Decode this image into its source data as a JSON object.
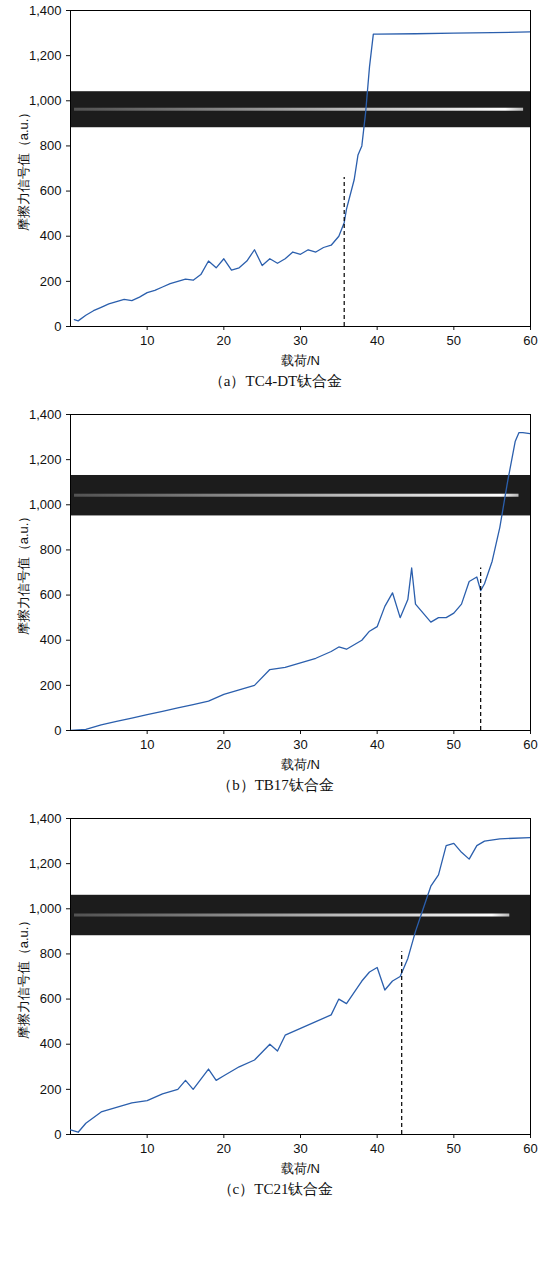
{
  "chart_data": [
    {
      "type": "line",
      "title": "（a）TC4-DT钛合金",
      "xlabel": "载荷/N",
      "ylabel": "摩擦力信号值（a.u.）",
      "xlim": [
        0,
        60
      ],
      "xticks": [
        10,
        20,
        30,
        40,
        50,
        60
      ],
      "ylim": [
        0,
        1400
      ],
      "yticks": [
        0,
        200,
        400,
        600,
        800,
        1000,
        1200,
        1400
      ],
      "color": "#2b5fad",
      "line_style": "solid",
      "x": [
        0.5,
        1,
        2,
        3,
        4,
        5,
        6,
        7,
        8,
        9,
        10,
        11,
        12,
        13,
        14,
        15,
        16,
        17,
        18,
        19,
        20,
        21,
        22,
        23,
        24,
        25,
        26,
        27,
        28,
        29,
        30,
        31,
        32,
        33,
        34,
        35,
        35.7,
        36,
        37,
        37.5,
        38,
        38.5,
        39,
        39.5,
        40,
        45,
        50,
        55,
        60
      ],
      "values": [
        30,
        25,
        50,
        70,
        85,
        100,
        110,
        120,
        115,
        130,
        150,
        160,
        175,
        190,
        200,
        210,
        205,
        230,
        290,
        260,
        300,
        250,
        260,
        290,
        340,
        270,
        300,
        280,
        300,
        330,
        320,
        340,
        330,
        350,
        360,
        400,
        460,
        520,
        650,
        760,
        800,
        950,
        1150,
        1295,
        1295,
        1297,
        1300,
        1302,
        1305
      ],
      "annotations": [
        {
          "type": "vline",
          "x": 35.7,
          "y1": 0,
          "y2": 660,
          "line_style": "dashed"
        }
      ]
    },
    {
      "type": "line",
      "title": "（b）TB17钛合金",
      "xlabel": "载荷/N",
      "ylabel": "摩擦力信号值（a.u.）",
      "xlim": [
        0,
        60
      ],
      "xticks": [
        10,
        20,
        30,
        40,
        50,
        60
      ],
      "ylim": [
        0,
        1400
      ],
      "yticks": [
        0,
        200,
        400,
        600,
        800,
        1000,
        1200,
        1400
      ],
      "color": "#2b5fad",
      "line_style": "solid",
      "x": [
        0,
        2,
        4,
        6,
        8,
        10,
        12,
        14,
        16,
        18,
        20,
        22,
        24,
        26,
        28,
        30,
        32,
        34,
        35,
        36,
        38,
        39,
        40,
        41,
        42,
        43,
        44,
        44.5,
        45,
        46,
        47,
        48,
        49,
        50,
        51,
        52,
        53,
        53.5,
        54,
        55,
        56,
        57,
        58,
        58.5,
        59,
        60
      ],
      "values": [
        0,
        5,
        25,
        40,
        55,
        70,
        85,
        100,
        115,
        130,
        160,
        180,
        200,
        270,
        280,
        300,
        320,
        350,
        370,
        360,
        400,
        440,
        460,
        550,
        610,
        500,
        580,
        720,
        560,
        520,
        480,
        500,
        500,
        520,
        560,
        660,
        680,
        620,
        650,
        750,
        900,
        1100,
        1280,
        1320,
        1320,
        1315
      ],
      "annotations": [
        {
          "type": "vline",
          "x": 53.5,
          "y1": 0,
          "y2": 720,
          "line_style": "dashed"
        }
      ]
    },
    {
      "type": "line",
      "title": "（c）TC21钛合金",
      "xlabel": "载荷/N",
      "ylabel": "摩擦力信号值（a.u.）",
      "xlim": [
        0,
        60
      ],
      "xticks": [
        10,
        20,
        30,
        40,
        50,
        60
      ],
      "ylim": [
        0,
        1400
      ],
      "yticks": [
        0,
        200,
        400,
        600,
        800,
        1000,
        1200,
        1400
      ],
      "color": "#2b5fad",
      "line_style": "solid",
      "x": [
        0,
        1,
        2,
        4,
        6,
        8,
        10,
        12,
        14,
        15,
        16,
        18,
        19,
        20,
        22,
        24,
        26,
        27,
        28,
        30,
        32,
        34,
        35,
        36,
        38,
        39,
        40,
        41,
        42,
        43,
        44,
        45,
        46,
        47,
        48,
        49,
        50,
        50.5,
        51,
        52,
        53,
        54,
        56,
        60
      ],
      "values": [
        20,
        10,
        50,
        100,
        120,
        140,
        150,
        180,
        200,
        240,
        200,
        290,
        240,
        260,
        300,
        330,
        400,
        370,
        440,
        470,
        500,
        530,
        600,
        580,
        680,
        720,
        740,
        640,
        680,
        700,
        780,
        900,
        1000,
        1100,
        1150,
        1280,
        1290,
        1270,
        1250,
        1220,
        1280,
        1300,
        1310,
        1315
      ],
      "annotations": [
        {
          "type": "vline",
          "x": 43.2,
          "y1": 0,
          "y2": 810,
          "line_style": "dashed"
        }
      ]
    }
  ]
}
